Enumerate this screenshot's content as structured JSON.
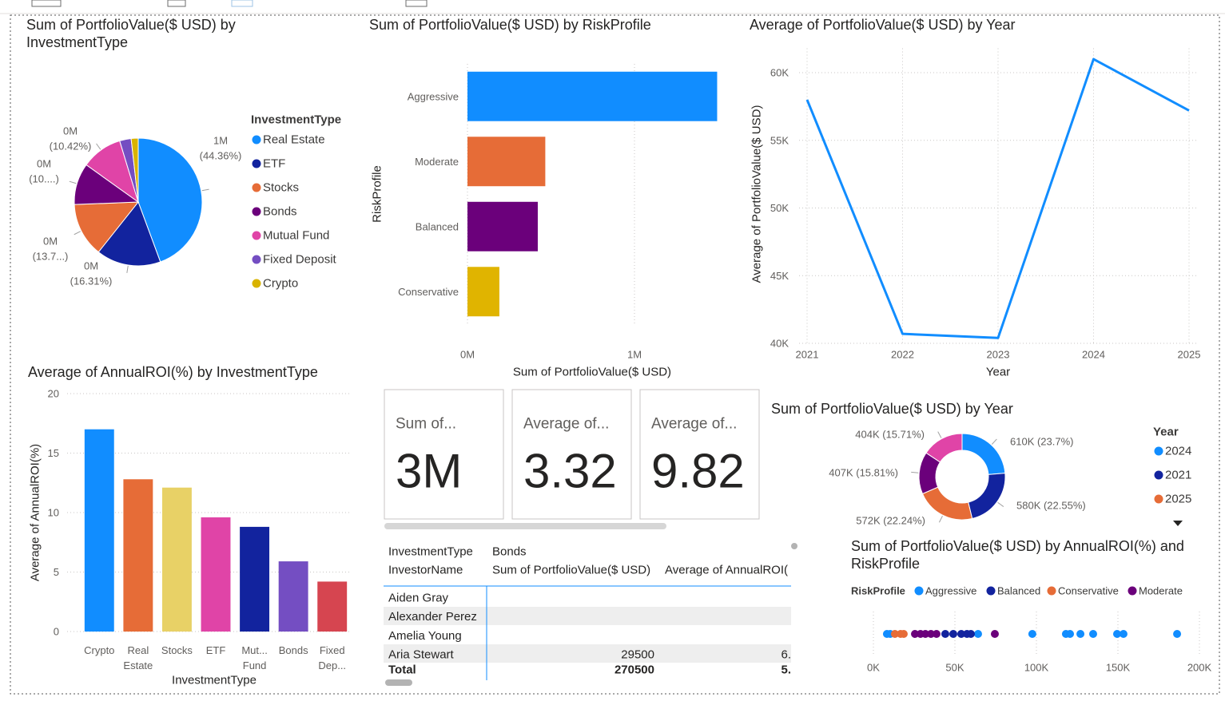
{
  "chart_data": [
    {
      "type": "pie",
      "title": "Sum of PortfolioValue($ USD) by InvestmentType",
      "legend_title": "InvestmentType",
      "categories": [
        "Real Estate",
        "ETF",
        "Stocks",
        "Bonds",
        "Mutual Fund",
        "Fixed Deposit",
        "Crypto"
      ],
      "values": [
        1141400,
        419700,
        352500,
        270500,
        268100,
        75000,
        45800
      ],
      "value_labels": [
        "1M",
        "0M",
        "0M",
        "0M",
        "0M",
        null,
        null
      ],
      "percent_labels": [
        "(44.36%)",
        "(16.31%)",
        "(13.7...)",
        "(10....)",
        "(10.42%)",
        null,
        null
      ],
      "colors": [
        "#118DFF",
        "#12239E",
        "#E66C37",
        "#6B007B",
        "#E044A7",
        "#744EC2",
        "#D9B300"
      ]
    },
    {
      "type": "bar",
      "orientation": "horizontal",
      "title": "Sum of PortfolioValue($ USD) by RiskProfile",
      "x_label": "Sum of PortfolioValue($ USD)",
      "y_label": "RiskProfile",
      "categories": [
        "Aggressive",
        "Moderate",
        "Balanced",
        "Conservative"
      ],
      "values": [
        1495000,
        466000,
        421000,
        191000
      ],
      "colors": [
        "#118DFF",
        "#E66C37",
        "#6B007B",
        "#E0B400"
      ],
      "xlim": [
        0,
        1500000
      ],
      "xticks": [
        {
          "value": 0,
          "label": "0M"
        },
        {
          "value": 1000000,
          "label": "1M"
        }
      ],
      "grid": true
    },
    {
      "type": "line",
      "title": "Average of PortfolioValue($ USD) by Year",
      "x_label": "Year",
      "y_label": "Average of PortfolioValue($ USD)",
      "x": [
        2021,
        2022,
        2023,
        2024,
        2025
      ],
      "values": [
        58000,
        40700,
        40400,
        61000,
        57200
      ],
      "color": "#118DFF",
      "xlim": [
        2021,
        2025
      ],
      "xticks": [
        2021,
        2022,
        2023,
        2024,
        2025
      ],
      "ylim": [
        40000,
        61800
      ],
      "yticks": [
        {
          "value": 40000,
          "label": "40K"
        },
        {
          "value": 45000,
          "label": "45K"
        },
        {
          "value": 50000,
          "label": "50K"
        },
        {
          "value": 55000,
          "label": "55K"
        },
        {
          "value": 60000,
          "label": "60K"
        }
      ],
      "grid": true
    },
    {
      "type": "bar",
      "orientation": "vertical",
      "title": "Average of AnnualROI(%) by InvestmentType",
      "x_label": "InvestmentType",
      "y_label": "Average of AnnualROI(%)",
      "categories": [
        "Crypto",
        "Real Estate",
        "Stocks",
        "ETF",
        "Mut... Fund",
        "Bonds",
        "Fixed Dep..."
      ],
      "values": [
        17.0,
        12.8,
        12.1,
        9.6,
        8.8,
        5.9,
        4.2
      ],
      "colors": [
        "#118DFF",
        "#E66C37",
        "#E8D166",
        "#E044A7",
        "#12239E",
        "#744EC2",
        "#D64550"
      ],
      "ylim": [
        0,
        20
      ],
      "yticks": [
        0,
        5,
        10,
        15,
        20
      ],
      "grid": true
    },
    {
      "type": "donut",
      "title": "Sum of PortfolioValue($ USD) by Year",
      "legend_title": "Year",
      "categories": [
        "2024",
        "2021",
        "2025",
        null,
        null
      ],
      "values": [
        610000,
        580000,
        572000,
        407000,
        404000
      ],
      "value_labels": [
        "610K (23.7%)",
        "580K (22.55%)",
        "572K (22.24%)",
        "407K (15.81%)",
        "404K (15.71%)"
      ],
      "colors": [
        "#118DFF",
        "#12239E",
        "#E66C37",
        "#6B007B",
        "#E044A7"
      ]
    },
    {
      "type": "scatter",
      "title": "Sum of PortfolioValue($ USD) by AnnualROI(%) and RiskProfile",
      "legend_title": "RiskProfile",
      "series": [
        {
          "name": "Aggressive",
          "color": "#118DFF",
          "x": [
            8300,
            10300,
            64200,
            97500,
            118100,
            120600,
            127000,
            134800,
            149500,
            153400,
            186300
          ]
        },
        {
          "name": "Balanced",
          "color": "#12239E",
          "x": [
            44100,
            49000,
            53900,
            57400,
            59800
          ]
        },
        {
          "name": "Conservative",
          "color": "#E66C37",
          "x": [
            13200,
            16700,
            18600
          ]
        },
        {
          "name": "Moderate",
          "color": "#6B007B",
          "x": [
            25500,
            28900,
            31900,
            35300,
            38700,
            74500
          ]
        }
      ],
      "xlim": [
        0,
        200000
      ],
      "xticks": [
        {
          "value": 0,
          "label": "0K"
        },
        {
          "value": 50000,
          "label": "50K"
        },
        {
          "value": 100000,
          "label": "100K"
        },
        {
          "value": 150000,
          "label": "150K"
        },
        {
          "value": 200000,
          "label": "200K"
        }
      ]
    }
  ],
  "cards": [
    {
      "label": "Sum of...",
      "value": "3M"
    },
    {
      "label": "Average of...",
      "value": 3.32
    },
    {
      "label": "Average of...",
      "value": 9.82
    }
  ],
  "table": {
    "header": [
      [
        "InvestmentType",
        "Bonds"
      ],
      [
        "InvestorName",
        "Sum of PortfolioValue($ USD)",
        "Average of AnnualROI("
      ]
    ],
    "rows": [
      [
        "Aiden Gray"
      ],
      [
        "Alexander Perez"
      ],
      [
        "Amelia Young"
      ],
      [
        "Aria Stewart",
        29500,
        "6."
      ]
    ],
    "total": [
      "Total",
      270500,
      "5."
    ]
  }
}
